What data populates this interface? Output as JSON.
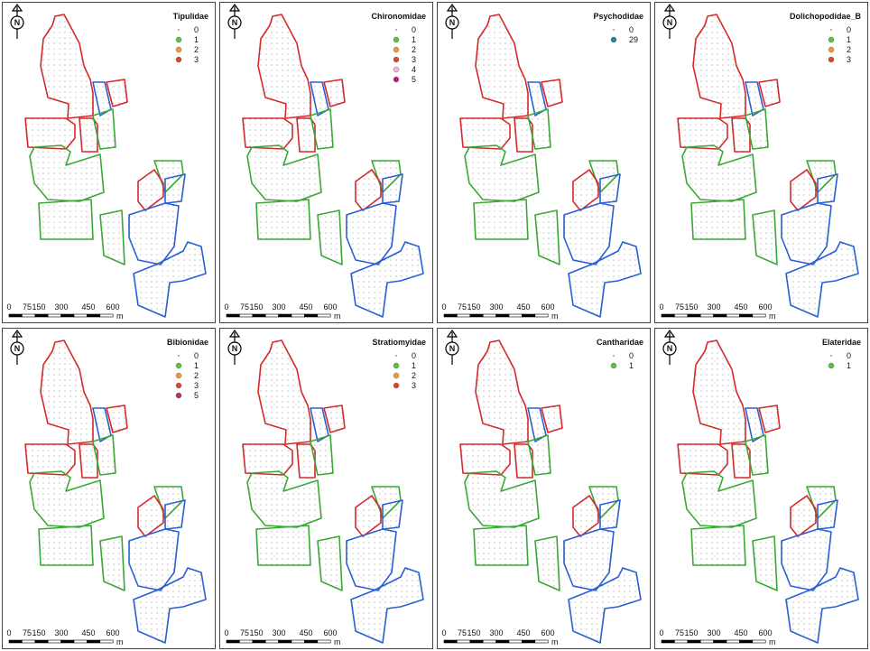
{
  "north_label": "N",
  "scale_bar": {
    "labels": [
      "0",
      "75",
      "150",
      "300",
      "450",
      "600"
    ],
    "unit": "m"
  },
  "panels": [
    {
      "title": "Tipulidae",
      "legend": [
        {
          "label": "0",
          "color": "#9a9a9a"
        },
        {
          "label": "1",
          "color": "#5cc43c"
        },
        {
          "label": "2",
          "color": "#f29a35"
        },
        {
          "label": "3",
          "color": "#d9472b"
        }
      ]
    },
    {
      "title": "Chironomidae",
      "legend": [
        {
          "label": "0",
          "color": "#9a9a9a"
        },
        {
          "label": "1",
          "color": "#5cc43c"
        },
        {
          "label": "2",
          "color": "#f29a35"
        },
        {
          "label": "3",
          "color": "#d9472b"
        },
        {
          "label": "4",
          "color": "#f4b6d9"
        },
        {
          "label": "5",
          "color": "#c7158a"
        }
      ]
    },
    {
      "title": "Psychodidae",
      "legend": [
        {
          "label": "0",
          "color": "#9a9a9a"
        },
        {
          "label": "29",
          "color": "#2a7fa8"
        }
      ]
    },
    {
      "title": "Dolichopodidae_B",
      "legend": [
        {
          "label": "0",
          "color": "#9a9a9a"
        },
        {
          "label": "1",
          "color": "#5cc43c"
        },
        {
          "label": "2",
          "color": "#f29a35"
        },
        {
          "label": "3",
          "color": "#d9472b"
        }
      ]
    },
    {
      "title": "Bibionidae",
      "legend": [
        {
          "label": "0",
          "color": "#9a9a9a"
        },
        {
          "label": "1",
          "color": "#5cc43c"
        },
        {
          "label": "2",
          "color": "#f29a35"
        },
        {
          "label": "3",
          "color": "#d9472b"
        },
        {
          "label": "5",
          "color": "#b0306a"
        }
      ]
    },
    {
      "title": "Stratiomyidae",
      "legend": [
        {
          "label": "0",
          "color": "#9a9a9a"
        },
        {
          "label": "1",
          "color": "#5cc43c"
        },
        {
          "label": "2",
          "color": "#f29a35"
        },
        {
          "label": "3",
          "color": "#d9472b"
        }
      ]
    },
    {
      "title": "Cantharidae",
      "legend": [
        {
          "label": "0",
          "color": "#9a9a9a"
        },
        {
          "label": "1",
          "color": "#5cc43c"
        }
      ]
    },
    {
      "title": "Elateridae",
      "legend": [
        {
          "label": "0",
          "color": "#9a9a9a"
        },
        {
          "label": "1",
          "color": "#5cc43c"
        }
      ]
    }
  ]
}
